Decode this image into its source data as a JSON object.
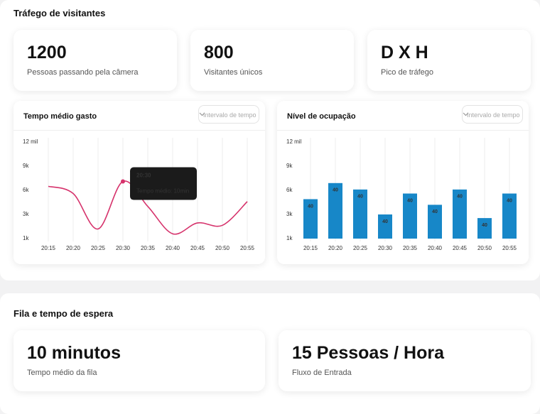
{
  "sections": [
    {
      "title": "Tráfego de visitantes",
      "cards": [
        {
          "value": "1200",
          "label": "Pessoas passando pela câmera"
        },
        {
          "value": "800",
          "label": "Visitantes únicos"
        },
        {
          "value": "D X H",
          "label": "Pico de tráfego"
        }
      ]
    },
    {
      "title": "Fila e tempo de espera",
      "cards": [
        {
          "value": "10 minutos",
          "label": "Tempo médio da fila"
        },
        {
          "value": "15 Pessoas / Hora",
          "label": "Fluxo de Entrada"
        }
      ]
    }
  ],
  "chart_data": [
    {
      "type": "line",
      "title": "Tempo médio gasto",
      "filter": "Intervalo de tempo",
      "color": "#d6336c",
      "categories": [
        "20:15",
        "20:20",
        "20:25",
        "20:30",
        "20:35",
        "20:40",
        "20:45",
        "20:50",
        "20:55"
      ],
      "values": [
        6500,
        5600,
        1800,
        7100,
        4000,
        1400,
        2300,
        2100,
        4600
      ],
      "ylim": [
        1000,
        12000
      ],
      "yticks": [
        {
          "value": 1000,
          "label": "1k"
        },
        {
          "value": 3000,
          "label": "3k"
        },
        {
          "value": 6000,
          "label": "6k"
        },
        {
          "value": 9000,
          "label": "9k"
        },
        {
          "value": 12000,
          "label": "12 mil"
        }
      ],
      "tooltip": {
        "title": "20:30",
        "text": "Tempo médio: 10min"
      }
    },
    {
      "type": "bar",
      "title": "Nível de ocupação",
      "filter": "Intervalo de tempo",
      "color": "#1787c8",
      "categories": [
        "20:15",
        "20:20",
        "20:25",
        "20:30",
        "20:35",
        "20:40",
        "20:45",
        "20:50",
        "20:55"
      ],
      "values": [
        4900,
        6900,
        6100,
        3000,
        5600,
        4200,
        6100,
        2700,
        5600
      ],
      "bar_texts": [
        "40",
        "40",
        "40",
        "40",
        "40",
        "40",
        "40",
        "40",
        "40"
      ],
      "ylim": [
        1000,
        12000
      ],
      "yticks": [
        {
          "value": 1000,
          "label": "1k"
        },
        {
          "value": 3000,
          "label": "3k"
        },
        {
          "value": 6000,
          "label": "6k"
        },
        {
          "value": 9000,
          "label": "9k"
        },
        {
          "value": 12000,
          "label": "12 mil"
        }
      ]
    }
  ]
}
